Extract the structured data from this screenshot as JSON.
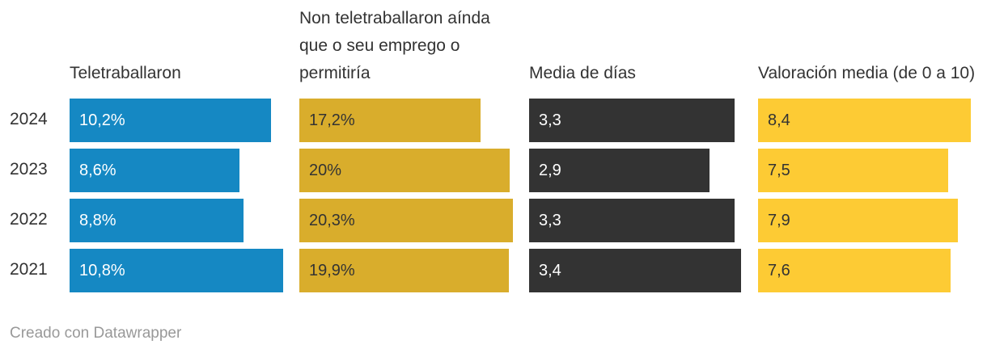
{
  "chart_data": {
    "type": "bar",
    "categories": [
      "2024",
      "2023",
      "2022",
      "2021"
    ],
    "series": [
      {
        "name": "Teletraballaron",
        "values": [
          10.2,
          8.6,
          8.8,
          10.8
        ],
        "labels": [
          "10,2%",
          "8,6%",
          "8,8%",
          "10,8%"
        ],
        "max": 10.8,
        "color": "#1588c3",
        "text_color": "#ffffff"
      },
      {
        "name": "Non teletraballaron aínda que o seu emprego o permitiría",
        "values": [
          17.2,
          20,
          20.3,
          19.9
        ],
        "labels": [
          "17,2%",
          "20%",
          "20,3%",
          "19,9%"
        ],
        "max": 20.3,
        "color": "#d9ad2c",
        "text_color": "#333333"
      },
      {
        "name": "Media de días",
        "values": [
          3.3,
          2.9,
          3.3,
          3.4
        ],
        "labels": [
          "3,3",
          "2,9",
          "3,3",
          "3,4"
        ],
        "max": 3.4,
        "color": "#333333",
        "text_color": "#ffffff"
      },
      {
        "name": "Valoración media (de 0 a 10)",
        "values": [
          8.4,
          7.5,
          7.9,
          7.6
        ],
        "labels": [
          "8,4",
          "7,5",
          "7,9",
          "7,6"
        ],
        "max": 8.4,
        "color": "#fdcb34",
        "text_color": "#333333"
      }
    ]
  },
  "footer": {
    "credit": "Creado con Datawrapper"
  }
}
